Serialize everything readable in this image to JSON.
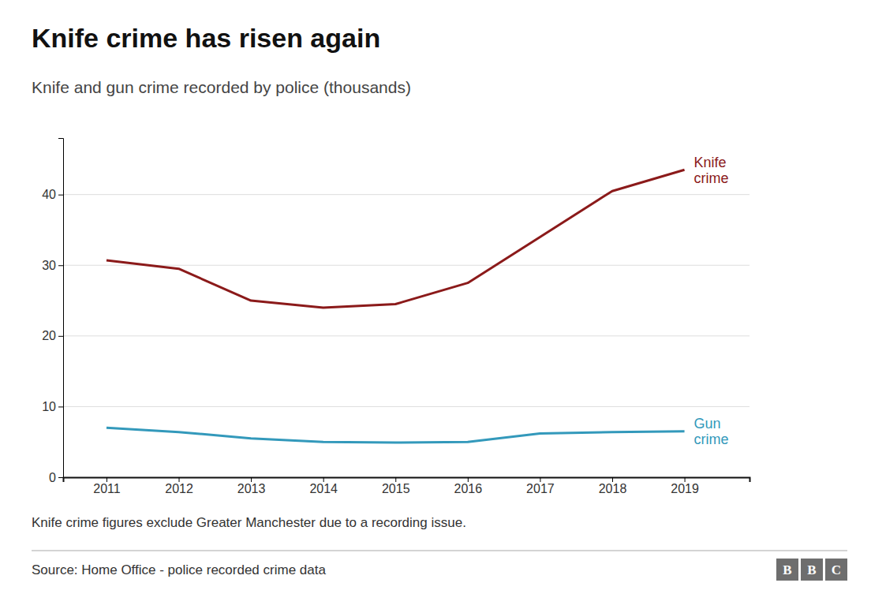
{
  "chart_data": {
    "type": "line",
    "title": "Knife crime has risen again",
    "subtitle": "Knife and gun crime recorded by police (thousands)",
    "x": [
      2011,
      2012,
      2013,
      2014,
      2015,
      2016,
      2017,
      2018,
      2019
    ],
    "series": [
      {
        "name": "Knife\ncrime",
        "color": "#8B1A1A",
        "values": [
          30.7,
          29.5,
          25.0,
          24.0,
          24.5,
          27.5,
          34.0,
          40.5,
          43.5
        ]
      },
      {
        "name": "Gun\ncrime",
        "color": "#3399BB",
        "values": [
          7.0,
          6.4,
          5.5,
          5.0,
          4.9,
          5.0,
          6.2,
          6.4,
          6.5
        ]
      }
    ],
    "xlim": [
      2010.4,
      2019.9
    ],
    "xticks": [
      2011,
      2012,
      2013,
      2014,
      2015,
      2016,
      2017,
      2018,
      2019
    ],
    "ylim": [
      0,
      48
    ],
    "yticks": [
      0,
      10,
      20,
      30,
      40
    ],
    "grid": true,
    "annotations": [
      "Knife crime figures exclude Greater Manchester due to a recording issue.",
      "Source: Home Office - police recorded crime data",
      "BBC"
    ]
  }
}
